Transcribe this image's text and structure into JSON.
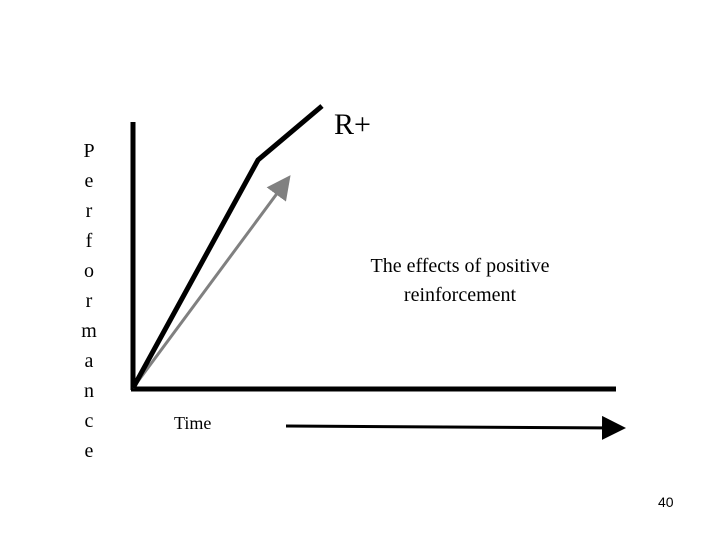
{
  "slide": {
    "y_axis_label": "Performance",
    "x_axis_label": "Time",
    "curve_label": "R+",
    "caption_lines": [
      "The effects of positive",
      "reinforcement"
    ],
    "page_number": "40"
  },
  "colors": {
    "axis": "#000000",
    "reinforced_curve": "#000000",
    "baseline_arrow": "#808080"
  }
}
